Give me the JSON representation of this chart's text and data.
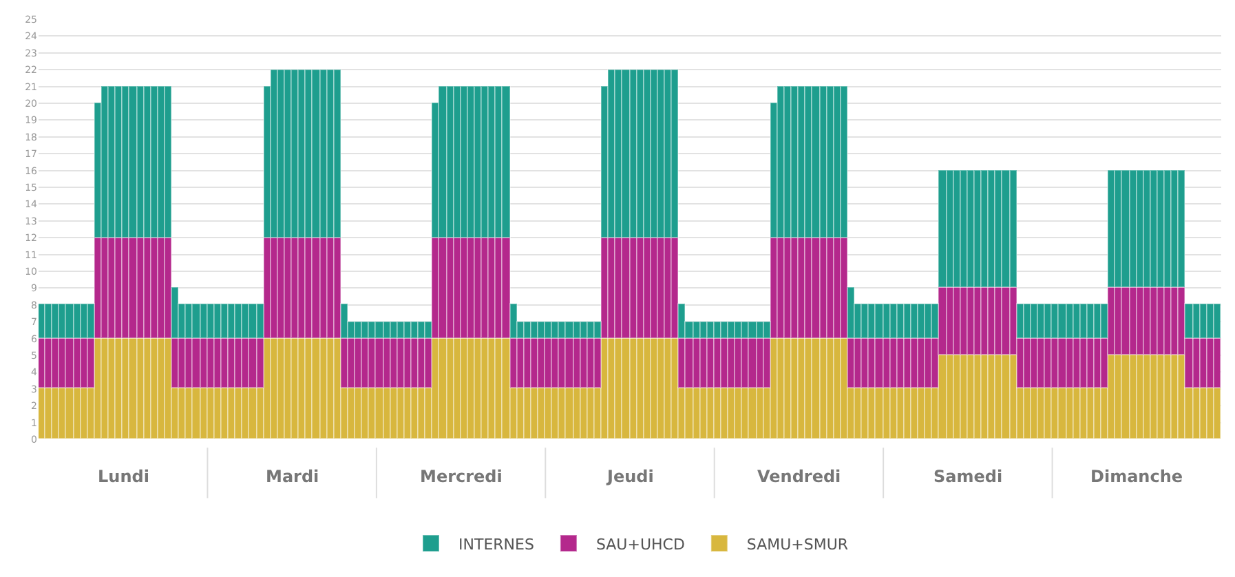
{
  "chart_data": {
    "type": "bar",
    "stacked": true,
    "categories": [
      null,
      null,
      null,
      null,
      null,
      null,
      null,
      null,
      null,
      null,
      null,
      null,
      null,
      null,
      null,
      null,
      null,
      null,
      null,
      null,
      null,
      null,
      null,
      null,
      null,
      null,
      null,
      null,
      null,
      null,
      null,
      null,
      null,
      null,
      null,
      null,
      null,
      null,
      null,
      null,
      null,
      null,
      null,
      null,
      null,
      null,
      null,
      null,
      null,
      null,
      null,
      null,
      null,
      null,
      null,
      null,
      null,
      null,
      null,
      null,
      null,
      null,
      null,
      null,
      null,
      null,
      null,
      null,
      null,
      null,
      null,
      null,
      null,
      null,
      null,
      null,
      null,
      null,
      null,
      null,
      null,
      null,
      null,
      null,
      null,
      null,
      null,
      null,
      null,
      null,
      null,
      null,
      null,
      null,
      null,
      null,
      null,
      null,
      null,
      null,
      null,
      null,
      null,
      null,
      null,
      null,
      null,
      null,
      null,
      null,
      null,
      null,
      null,
      null,
      null,
      null,
      null,
      null,
      null,
      null,
      null,
      null,
      null,
      null,
      null,
      null,
      null,
      null,
      null,
      null,
      null,
      null,
      null,
      null,
      null,
      null,
      null,
      null,
      null,
      null,
      null,
      null,
      null,
      null,
      null,
      null,
      null,
      null,
      null,
      null,
      null,
      null,
      null,
      null,
      null,
      null,
      null,
      null,
      null,
      null,
      null,
      null,
      null,
      null,
      null,
      null,
      null,
      null
    ],
    "series": [
      {
        "name": "SAMU+SMUR",
        "color": "#d8b73e",
        "values": [
          3,
          3,
          3,
          3,
          3,
          3,
          3,
          3,
          6,
          6,
          6,
          6,
          6,
          6,
          6,
          6,
          6,
          6,
          6,
          3,
          3,
          3,
          3,
          3,
          3,
          3,
          3,
          3,
          3,
          3,
          3,
          3,
          6,
          6,
          6,
          6,
          6,
          6,
          6,
          6,
          6,
          6,
          6,
          3,
          3,
          3,
          3,
          3,
          3,
          3,
          3,
          3,
          3,
          3,
          3,
          3,
          6,
          6,
          6,
          6,
          6,
          6,
          6,
          6,
          6,
          6,
          6,
          3,
          3,
          3,
          3,
          3,
          3,
          3,
          3,
          3,
          3,
          3,
          3,
          3,
          6,
          6,
          6,
          6,
          6,
          6,
          6,
          6,
          6,
          6,
          6,
          3,
          3,
          3,
          3,
          3,
          3,
          3,
          3,
          3,
          3,
          3,
          3,
          3,
          6,
          6,
          6,
          6,
          6,
          6,
          6,
          6,
          6,
          6,
          6,
          3,
          3,
          3,
          3,
          3,
          3,
          3,
          3,
          3,
          3,
          3,
          3,
          3,
          5,
          5,
          5,
          5,
          5,
          5,
          5,
          5,
          5,
          5,
          5,
          3,
          3,
          3,
          3,
          3,
          3,
          3,
          3,
          3,
          3,
          3,
          3,
          3,
          5,
          5,
          5,
          5,
          5,
          5,
          5,
          5,
          5,
          5,
          5,
          3,
          3,
          3,
          3,
          3
        ]
      },
      {
        "name": "SAU+UHCD",
        "color": "#b4288c",
        "values": [
          3,
          3,
          3,
          3,
          3,
          3,
          3,
          3,
          6,
          6,
          6,
          6,
          6,
          6,
          6,
          6,
          6,
          6,
          6,
          3,
          3,
          3,
          3,
          3,
          3,
          3,
          3,
          3,
          3,
          3,
          3,
          3,
          6,
          6,
          6,
          6,
          6,
          6,
          6,
          6,
          6,
          6,
          6,
          3,
          3,
          3,
          3,
          3,
          3,
          3,
          3,
          3,
          3,
          3,
          3,
          3,
          6,
          6,
          6,
          6,
          6,
          6,
          6,
          6,
          6,
          6,
          6,
          3,
          3,
          3,
          3,
          3,
          3,
          3,
          3,
          3,
          3,
          3,
          3,
          3,
          6,
          6,
          6,
          6,
          6,
          6,
          6,
          6,
          6,
          6,
          6,
          3,
          3,
          3,
          3,
          3,
          3,
          3,
          3,
          3,
          3,
          3,
          3,
          3,
          6,
          6,
          6,
          6,
          6,
          6,
          6,
          6,
          6,
          6,
          6,
          3,
          3,
          3,
          3,
          3,
          3,
          3,
          3,
          3,
          3,
          3,
          3,
          3,
          4,
          4,
          4,
          4,
          4,
          4,
          4,
          4,
          4,
          4,
          4,
          3,
          3,
          3,
          3,
          3,
          3,
          3,
          3,
          3,
          3,
          3,
          3,
          3,
          4,
          4,
          4,
          4,
          4,
          4,
          4,
          4,
          4,
          4,
          4,
          3,
          3,
          3,
          3,
          3
        ]
      },
      {
        "name": "INTERNES",
        "color": "#1e9e8e",
        "values": [
          2,
          2,
          2,
          2,
          2,
          2,
          2,
          2,
          8,
          9,
          9,
          9,
          9,
          9,
          9,
          9,
          9,
          9,
          9,
          3,
          2,
          2,
          2,
          2,
          2,
          2,
          2,
          2,
          2,
          2,
          2,
          2,
          9,
          10,
          10,
          10,
          10,
          10,
          10,
          10,
          10,
          10,
          10,
          2,
          1,
          1,
          1,
          1,
          1,
          1,
          1,
          1,
          1,
          1,
          1,
          1,
          8,
          9,
          9,
          9,
          9,
          9,
          9,
          9,
          9,
          9,
          9,
          2,
          1,
          1,
          1,
          1,
          1,
          1,
          1,
          1,
          1,
          1,
          1,
          1,
          9,
          10,
          10,
          10,
          10,
          10,
          10,
          10,
          10,
          10,
          10,
          2,
          1,
          1,
          1,
          1,
          1,
          1,
          1,
          1,
          1,
          1,
          1,
          1,
          8,
          9,
          9,
          9,
          9,
          9,
          9,
          9,
          9,
          9,
          9,
          3,
          2,
          2,
          2,
          2,
          2,
          2,
          2,
          2,
          2,
          2,
          2,
          2,
          7,
          7,
          7,
          7,
          7,
          7,
          7,
          7,
          7,
          7,
          7,
          2,
          2,
          2,
          2,
          2,
          2,
          2,
          2,
          2,
          2,
          2,
          2,
          2,
          7,
          7,
          7,
          7,
          7,
          7,
          7,
          7,
          7,
          7,
          7,
          2,
          2,
          2,
          2,
          2
        ]
      }
    ],
    "annotations": [
      "Lundi",
      "Mardi",
      "Mercredi",
      "Jeudi",
      "Vendredi",
      "Samedi",
      "Dimanche"
    ],
    "ylim": [
      0,
      25
    ],
    "yticks": [
      0,
      1,
      2,
      3,
      4,
      5,
      6,
      7,
      8,
      9,
      10,
      11,
      12,
      13,
      14,
      15,
      16,
      17,
      18,
      19,
      20,
      21,
      22,
      23,
      24,
      25
    ],
    "grid": "y",
    "legend": "bottom"
  }
}
